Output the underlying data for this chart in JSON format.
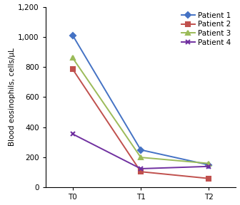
{
  "x_labels": [
    "T0",
    "T1",
    "T2"
  ],
  "x_values": [
    0,
    1,
    2
  ],
  "patients": [
    {
      "label": "Patient 1",
      "values": [
        1010,
        250,
        150
      ],
      "color": "#4472C4",
      "marker": "D",
      "linestyle": "-"
    },
    {
      "label": "Patient 2",
      "values": [
        785,
        105,
        60
      ],
      "color": "#C0504D",
      "marker": "s",
      "linestyle": "-"
    },
    {
      "label": "Patient 3",
      "values": [
        860,
        200,
        160
      ],
      "color": "#9BBB59",
      "marker": "^",
      "linestyle": "-"
    },
    {
      "label": "Patient 4",
      "values": [
        355,
        125,
        140
      ],
      "color": "#7030A0",
      "marker": "x",
      "linestyle": "-"
    }
  ],
  "ylabel": "Blood eosinophils, cells/μL",
  "ylim": [
    0,
    1200
  ],
  "yticks": [
    0,
    200,
    400,
    600,
    800,
    1000,
    1200
  ],
  "ytick_labels": [
    "0",
    "200",
    "400",
    "600",
    "800",
    "1,000",
    "1,200"
  ],
  "xlim": [
    -0.4,
    2.4
  ],
  "legend_loc": "upper right",
  "background_color": "#ffffff",
  "axis_fontsize": 7.5,
  "legend_fontsize": 7.5,
  "linewidth": 1.4,
  "markersize": 4
}
